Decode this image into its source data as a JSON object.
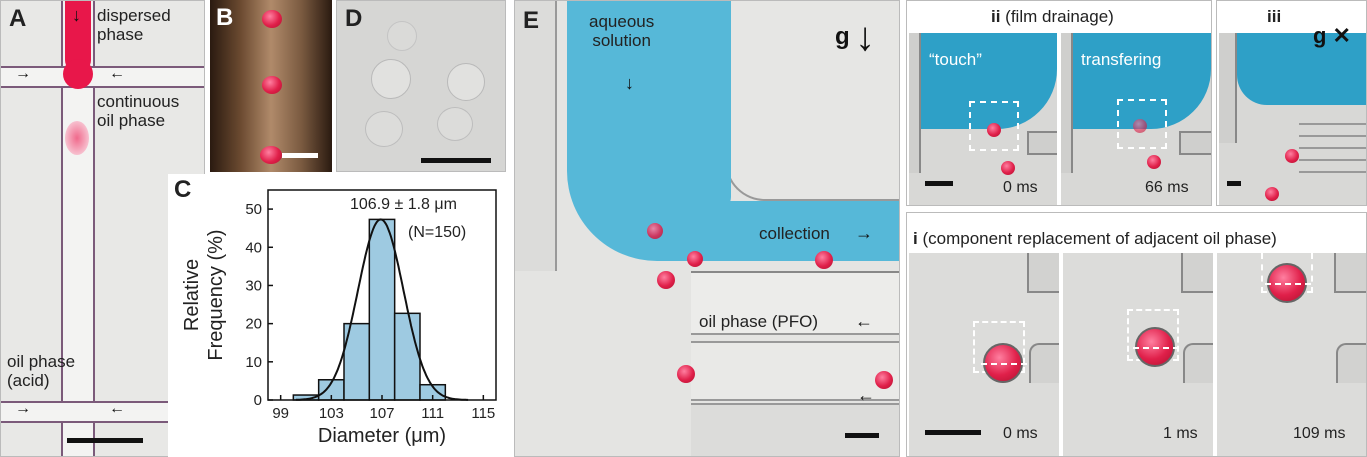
{
  "panels": {
    "A": {
      "letter": "A",
      "labels": {
        "dispersed": "dispersed\nphase",
        "continuous": "continuous\noil phase",
        "oil_acid": "oil phase\n(acid)"
      }
    },
    "B": {
      "letter": "B"
    },
    "D": {
      "letter": "D"
    },
    "C": {
      "letter": "C",
      "annotation_value": "106.9 ± 1.8 μm",
      "annotation_n": "(N=150)"
    },
    "E": {
      "letter": "E",
      "gravity": "g",
      "labels": {
        "aqueous": "aqueous\nsolution",
        "collection": "collection",
        "oil_pfo": "oil phase (PFO)"
      }
    },
    "ii": {
      "header_roman": "ii",
      "header_text": " (film drainage)",
      "touch": "“touch”",
      "transfering": "transfering",
      "t0": "0 ms",
      "t1": "66 ms"
    },
    "iii": {
      "header_roman": "iii",
      "gravity_off": "g ✕"
    },
    "i": {
      "header_roman": "i",
      "header_text": " (component replacement of adjacent oil phase)",
      "t0": "0 ms",
      "t1": "1 ms",
      "t2": "109 ms"
    }
  },
  "chart_data": {
    "type": "bar",
    "categories": [
      "101",
      "103",
      "105",
      "107",
      "109",
      "111"
    ],
    "values": [
      1.3,
      5.3,
      20,
      47.3,
      22.7,
      4
    ],
    "bin_edges": [
      100,
      102,
      104,
      106,
      108,
      110,
      112
    ],
    "fit": "gaussian",
    "fit_mean": 106.9,
    "fit_sd": 1.8,
    "xlabel": "Diameter (μm)",
    "ylabel": "Relative\nFrequency (%)",
    "xticks": [
      "99",
      "103",
      "107",
      "111",
      "115"
    ],
    "yticks": [
      "0",
      "10",
      "20",
      "30",
      "40",
      "50"
    ],
    "xlim": [
      98,
      116
    ],
    "ylim": [
      0,
      55
    ],
    "colors": {
      "bar": "#9ecae1",
      "edge": "#111111",
      "curve": "#111111"
    }
  }
}
